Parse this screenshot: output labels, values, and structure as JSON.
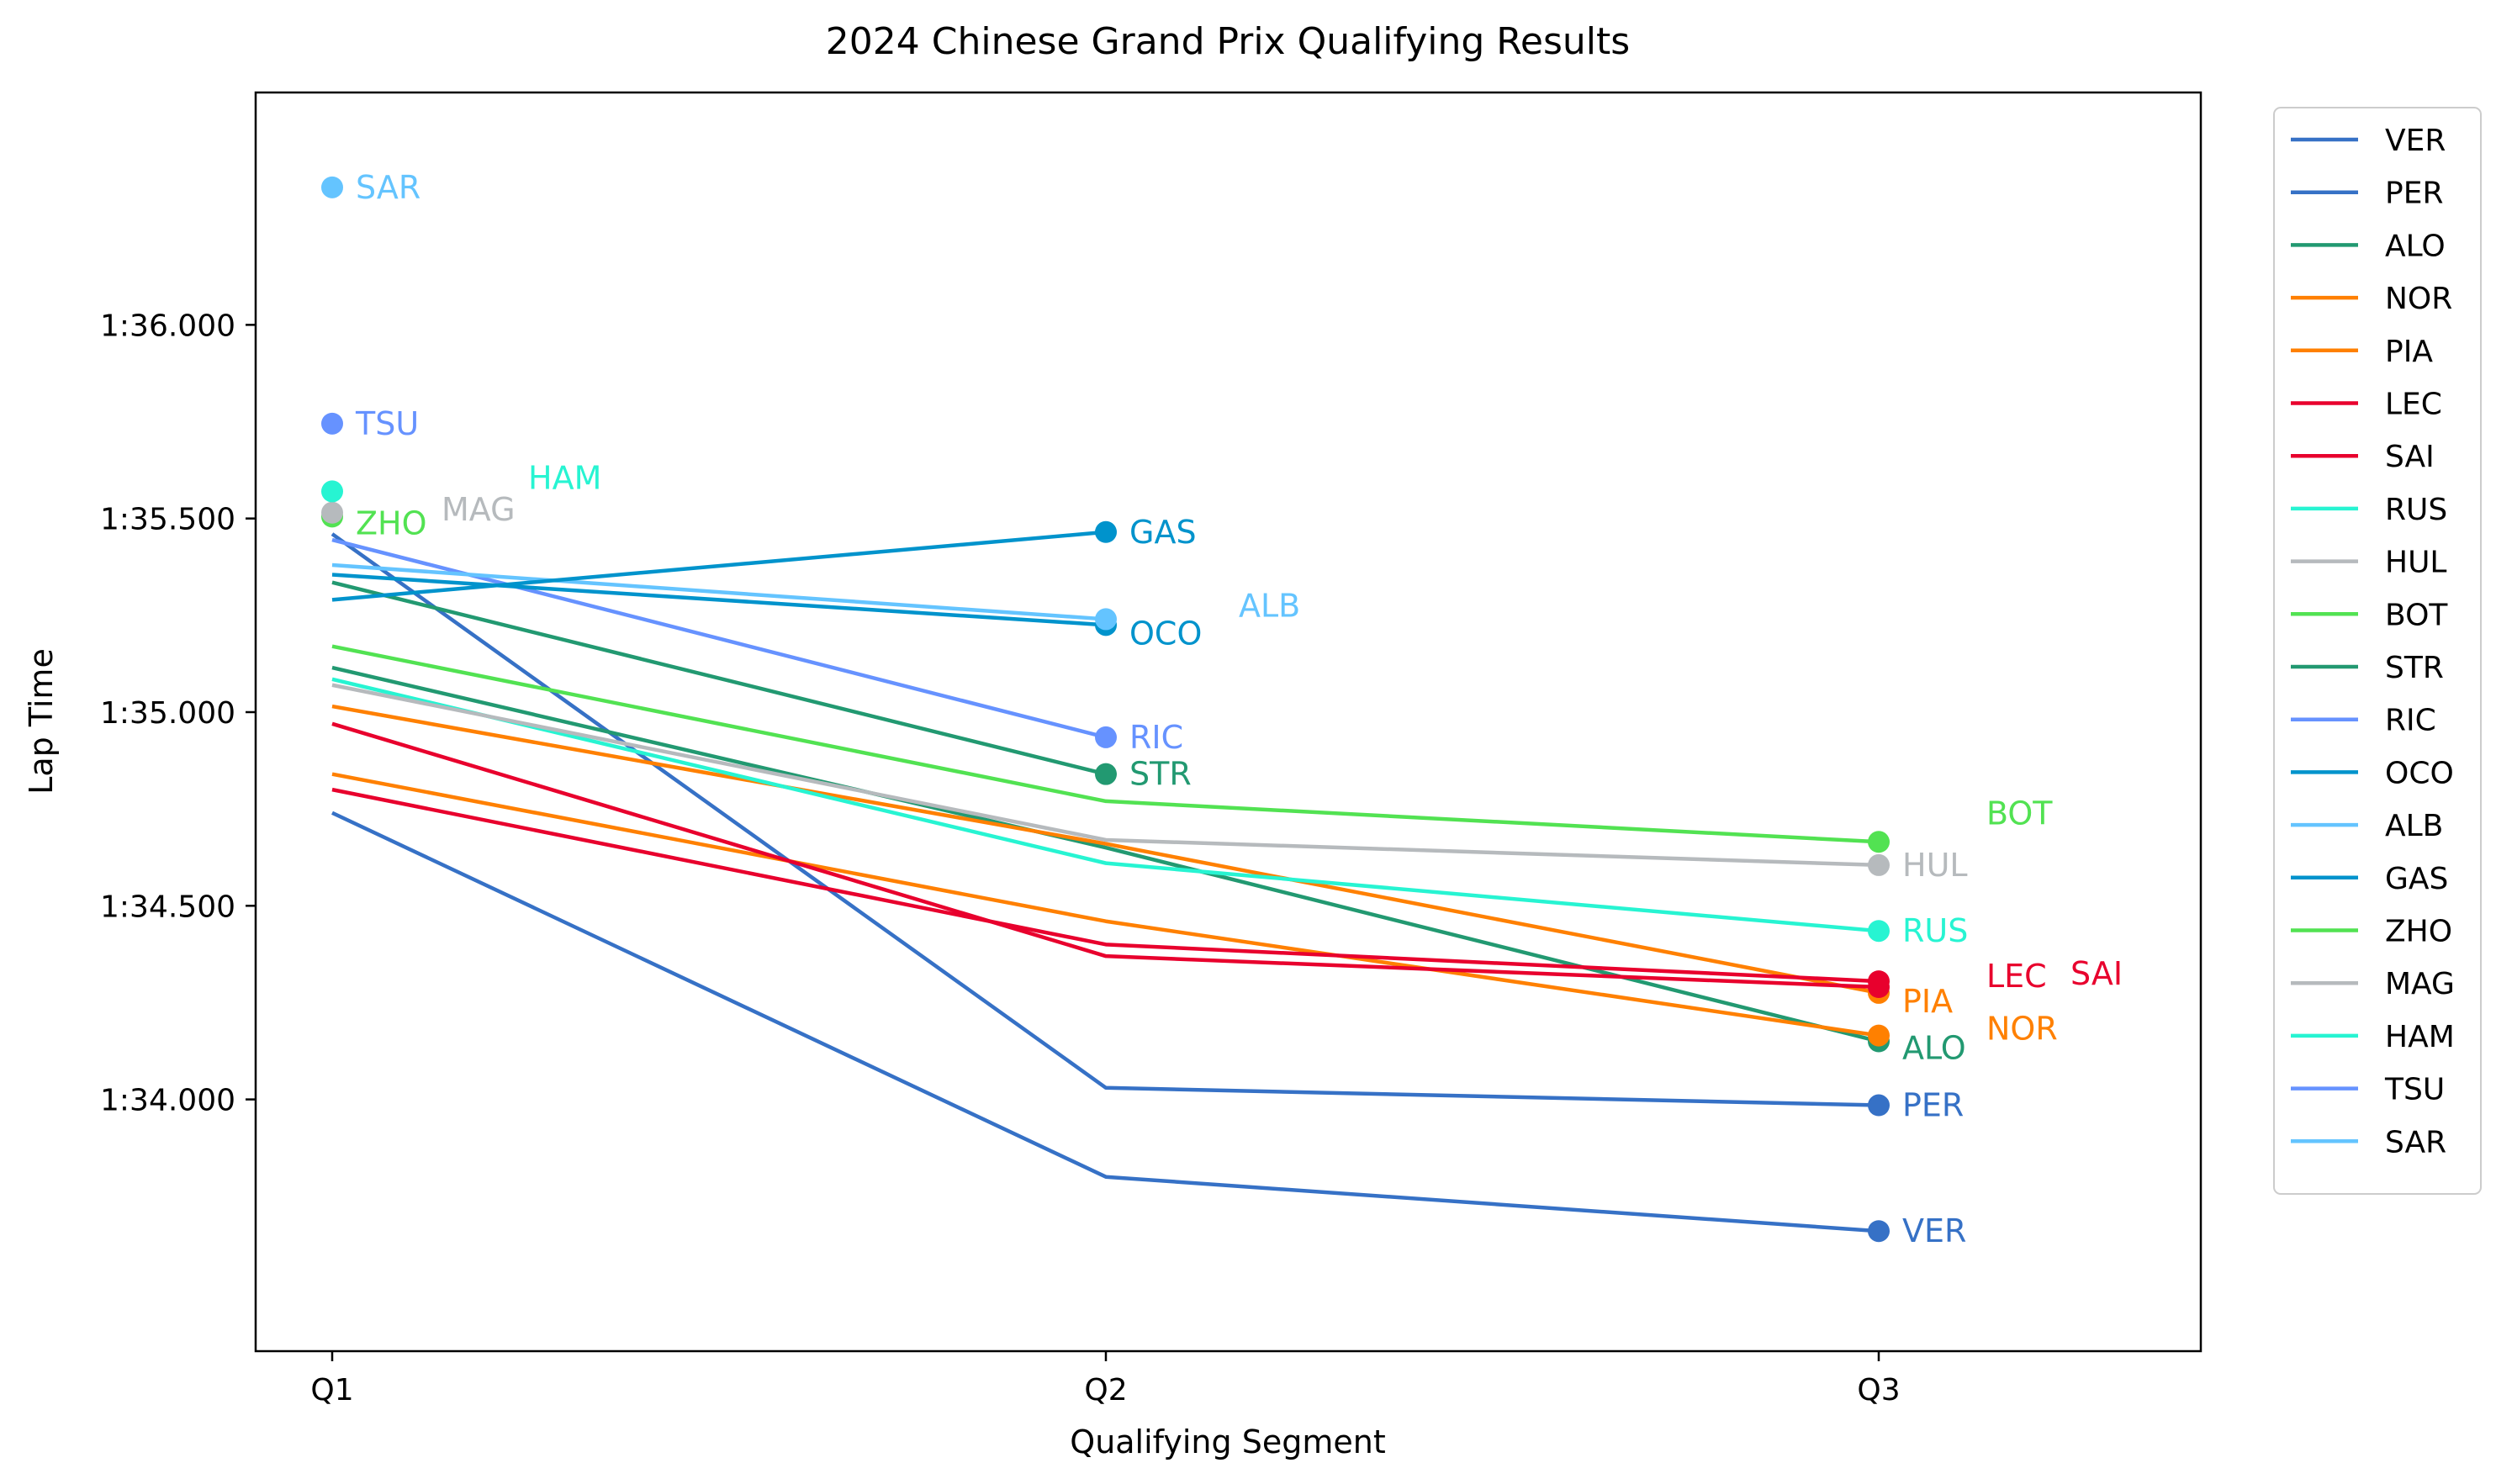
{
  "chart_data": {
    "type": "line",
    "title": "2024 Chinese Grand Prix Qualifying Results",
    "xlabel": "Qualifying Segment",
    "ylabel": "Lap Time",
    "categories": [
      "Q1",
      "Q2",
      "Q3"
    ],
    "ylim": [
      93.35,
      96.6
    ],
    "yticks": [
      94.0,
      94.5,
      95.0,
      95.5,
      96.0
    ],
    "ytick_labels": [
      "1:34.000",
      "1:34.500",
      "1:35.000",
      "1:35.500",
      "1:36.000"
    ],
    "grid": false,
    "legend_position": "right, outside plot",
    "series": [
      {
        "name": "VER",
        "color": "#3671C6",
        "values": [
          94.74,
          93.8,
          93.66
        ]
      },
      {
        "name": "PER",
        "color": "#3671C6",
        "values": [
          95.46,
          94.03,
          93.985
        ]
      },
      {
        "name": "ALO",
        "color": "#229971",
        "values": [
          95.115,
          94.65,
          94.15
        ]
      },
      {
        "name": "NOR",
        "color": "#FF8000",
        "values": [
          94.84,
          94.46,
          94.165
        ]
      },
      {
        "name": "PIA",
        "color": "#FF8000",
        "values": [
          95.015,
          94.66,
          94.275
        ]
      },
      {
        "name": "LEC",
        "color": "#E8002D",
        "values": [
          94.8,
          94.4,
          94.305
        ]
      },
      {
        "name": "SAI",
        "color": "#E8002D",
        "values": [
          94.97,
          94.37,
          94.29
        ]
      },
      {
        "name": "RUS",
        "color": "#27F4D2",
        "values": [
          95.085,
          94.61,
          94.435
        ]
      },
      {
        "name": "HUL",
        "color": "#B6BABD",
        "values": [
          95.07,
          94.67,
          94.605
        ]
      },
      {
        "name": "BOT",
        "color": "#52E252",
        "values": [
          95.17,
          94.77,
          94.665
        ]
      },
      {
        "name": "STR",
        "color": "#229971",
        "values": [
          95.335,
          94.84,
          null
        ]
      },
      {
        "name": "RIC",
        "color": "#6692FF",
        "values": [
          95.445,
          94.935,
          null
        ]
      },
      {
        "name": "OCO",
        "color": "#0093CC",
        "values": [
          95.355,
          95.225,
          null
        ]
      },
      {
        "name": "ALB",
        "color": "#64C4FF",
        "values": [
          95.38,
          95.24,
          null
        ]
      },
      {
        "name": "GAS",
        "color": "#0093CC",
        "values": [
          95.29,
          95.465,
          null
        ]
      },
      {
        "name": "ZHO",
        "color": "#52E252",
        "values": [
          95.505,
          null,
          null
        ]
      },
      {
        "name": "MAG",
        "color": "#B6BABD",
        "values": [
          95.515,
          null,
          null
        ]
      },
      {
        "name": "HAM",
        "color": "#27F4D2",
        "values": [
          95.57,
          null,
          null
        ]
      },
      {
        "name": "TSU",
        "color": "#6692FF",
        "values": [
          95.745,
          null,
          null
        ]
      },
      {
        "name": "SAR",
        "color": "#64C4FF",
        "values": [
          96.355,
          null,
          null
        ]
      }
    ]
  }
}
